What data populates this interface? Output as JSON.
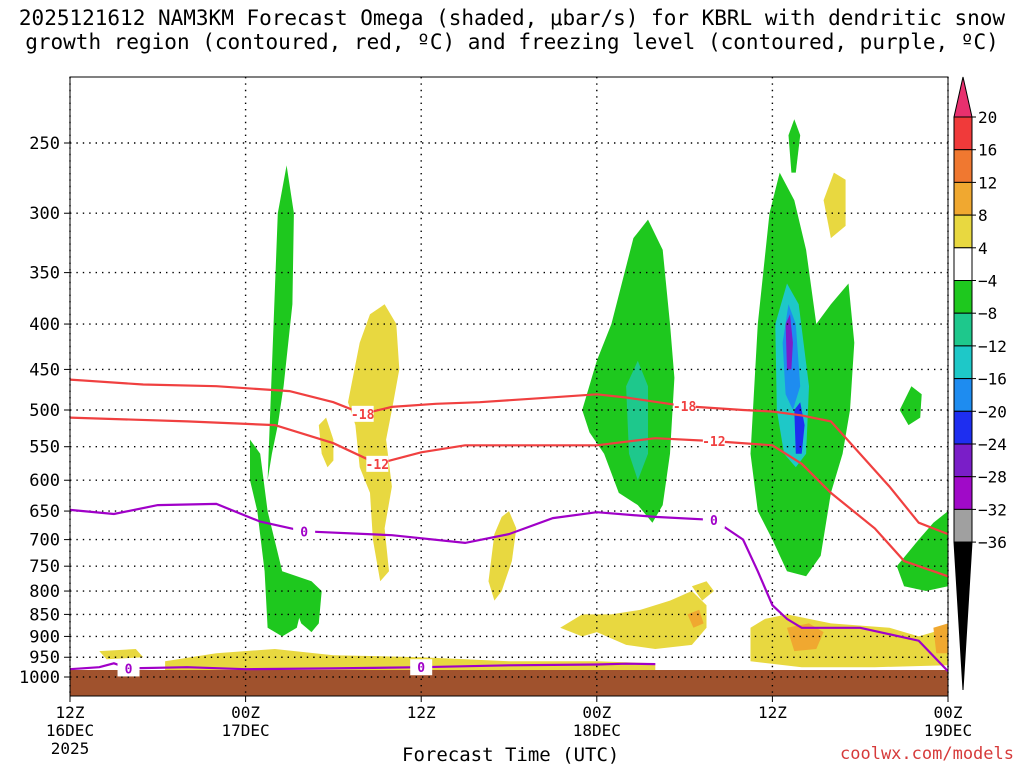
{
  "title_line1": "2025121612 NAM3KM Forecast Omega (shaded, μbar/s) for KBRL with dendritic snow",
  "title_line2": "growth region (contoured, red, ºC) and freezing level (contoured, purple, ºC)",
  "credit": "coolwx.com/models",
  "chart_data": {
    "type": "heatmap",
    "xlabel": "Forecast Time (UTC)",
    "ylabel": "",
    "x_ticks": [
      {
        "hour": 0,
        "label": [
          "12Z",
          "16DEC",
          "2025"
        ]
      },
      {
        "hour": 12,
        "label": [
          "00Z",
          "17DEC"
        ]
      },
      {
        "hour": 24,
        "label": [
          "12Z"
        ]
      },
      {
        "hour": 36,
        "label": [
          "00Z",
          "18DEC"
        ]
      },
      {
        "hour": 48,
        "label": [
          "12Z"
        ]
      },
      {
        "hour": 60,
        "label": [
          "00Z",
          "19DEC"
        ]
      }
    ],
    "xlim": [
      0,
      60
    ],
    "y_ticks": [
      250,
      300,
      350,
      400,
      450,
      500,
      550,
      600,
      650,
      700,
      750,
      800,
      850,
      900,
      950,
      1000
    ],
    "ylim": [
      1000,
      200
    ],
    "y_scale": "log",
    "colorbar": {
      "labels": [
        "20",
        "16",
        "12",
        "8",
        "4",
        "−4",
        "−8",
        "−12",
        "−16",
        "−20",
        "−24",
        "−28",
        "−32",
        "−36"
      ],
      "colors": [
        "#e8306e",
        "#f03a3a",
        "#f07830",
        "#f0a830",
        "#e8d840",
        "#ffffff",
        "#1ec81e",
        "#1ec88c",
        "#1ec8c8",
        "#1e8cf0",
        "#1e2ef0",
        "#7a1ec8",
        "#a00ac8",
        "#a0a0a0",
        "#000000"
      ]
    },
    "ground_color": "#a0522d",
    "isotherms": [
      {
        "label": "-18",
        "color": "#f04040",
        "points": [
          [
            0,
            462
          ],
          [
            5,
            468
          ],
          [
            10,
            470
          ],
          [
            15,
            476
          ],
          [
            18,
            490
          ],
          [
            20,
            505
          ],
          [
            22,
            496
          ],
          [
            25,
            492
          ],
          [
            28,
            490
          ],
          [
            32,
            485
          ],
          [
            36,
            480
          ],
          [
            38,
            484
          ],
          [
            42,
            495
          ],
          [
            46,
            500
          ],
          [
            48,
            502
          ],
          [
            50,
            507
          ],
          [
            52,
            515
          ],
          [
            56,
            610
          ],
          [
            58,
            670
          ],
          [
            60,
            690
          ]
        ]
      },
      {
        "label": "-12",
        "color": "#f04040",
        "points": [
          [
            0,
            510
          ],
          [
            8,
            515
          ],
          [
            14,
            520
          ],
          [
            18,
            545
          ],
          [
            21,
            575
          ],
          [
            24,
            558
          ],
          [
            27,
            548
          ],
          [
            32,
            548
          ],
          [
            36,
            548
          ],
          [
            40,
            538
          ],
          [
            44,
            542
          ],
          [
            48,
            548
          ],
          [
            50,
            575
          ],
          [
            52,
            620
          ],
          [
            55,
            680
          ],
          [
            57,
            740
          ],
          [
            60,
            770
          ]
        ]
      },
      {
        "label": "0",
        "color": "#a000c8",
        "points": [
          [
            0,
            648
          ],
          [
            3,
            655
          ],
          [
            6,
            640
          ],
          [
            10,
            638
          ],
          [
            13,
            668
          ],
          [
            16,
            685
          ],
          [
            22,
            692
          ],
          [
            27,
            706
          ],
          [
            30,
            690
          ],
          [
            33,
            662
          ],
          [
            36,
            652
          ],
          [
            40,
            660
          ],
          [
            44,
            665
          ],
          [
            46,
            700
          ],
          [
            47,
            760
          ],
          [
            48,
            830
          ],
          [
            49,
            860
          ],
          [
            50,
            880
          ],
          [
            54,
            880
          ],
          [
            58,
            910
          ],
          [
            60,
            985
          ]
        ]
      },
      {
        "label": "0",
        "color": "#a000c8",
        "points": [
          [
            0,
            980
          ],
          [
            2,
            975
          ],
          [
            3,
            965
          ],
          [
            4,
            978
          ],
          [
            8,
            975
          ],
          [
            12,
            980
          ],
          [
            18,
            978
          ],
          [
            24,
            975
          ],
          [
            30,
            970
          ],
          [
            36,
            968
          ],
          [
            38,
            966
          ],
          [
            40,
            967
          ]
        ]
      }
    ],
    "shaded_regions": [
      {
        "color": "#1ec81e",
        "poly": [
          [
            12.3,
            540
          ],
          [
            13,
            560
          ],
          [
            13.5,
            650
          ],
          [
            14.5,
            760
          ],
          [
            15.5,
            780
          ],
          [
            15.8,
            840
          ],
          [
            15.5,
            880
          ],
          [
            14.5,
            900
          ],
          [
            13.5,
            880
          ],
          [
            13.3,
            760
          ],
          [
            12.8,
            650
          ],
          [
            12.3,
            600
          ]
        ]
      },
      {
        "color": "#1ec81e",
        "poly": [
          [
            13.5,
            600
          ],
          [
            14.2,
            300
          ],
          [
            14.8,
            265
          ],
          [
            15.3,
            300
          ],
          [
            15.2,
            380
          ],
          [
            14.6,
            470
          ],
          [
            14.2,
            520
          ],
          [
            13.8,
            560
          ]
        ]
      },
      {
        "color": "#1ec81e",
        "poly": [
          [
            14.5,
            760
          ],
          [
            16.5,
            780
          ],
          [
            17.2,
            800
          ],
          [
            17,
            870
          ],
          [
            16.5,
            890
          ],
          [
            15.8,
            870
          ]
        ]
      },
      {
        "color": "#1ec81e",
        "poly": [
          [
            35,
            500
          ],
          [
            36,
            440
          ],
          [
            37,
            400
          ],
          [
            38.5,
            320
          ],
          [
            39.5,
            305
          ],
          [
            40.5,
            330
          ],
          [
            41,
            400
          ],
          [
            41.3,
            460
          ],
          [
            41,
            560
          ],
          [
            40.5,
            640
          ],
          [
            39.8,
            670
          ],
          [
            38.8,
            640
          ],
          [
            37.5,
            620
          ],
          [
            36.5,
            560
          ],
          [
            35.5,
            530
          ]
        ]
      },
      {
        "color": "#1ec81e",
        "poly": [
          [
            46.5,
            560
          ],
          [
            47,
            400
          ],
          [
            47.8,
            300
          ],
          [
            48.5,
            270
          ],
          [
            49.5,
            290
          ],
          [
            50.3,
            330
          ],
          [
            51,
            400
          ],
          [
            52,
            380
          ],
          [
            53.2,
            360
          ],
          [
            53.6,
            420
          ],
          [
            53.3,
            500
          ],
          [
            52.8,
            560
          ],
          [
            52,
            620
          ],
          [
            51.3,
            730
          ],
          [
            50.3,
            770
          ],
          [
            49,
            760
          ],
          [
            48,
            700
          ],
          [
            47,
            650
          ]
        ]
      },
      {
        "color": "#1ec81e",
        "poly": [
          [
            56.5,
            750
          ],
          [
            58,
            700
          ],
          [
            59,
            670
          ],
          [
            60,
            650
          ],
          [
            60,
            790
          ],
          [
            58.5,
            800
          ],
          [
            57,
            790
          ]
        ]
      },
      {
        "color": "#1ec81e",
        "poly": [
          [
            49.1,
            245
          ],
          [
            49.5,
            235
          ],
          [
            49.9,
            245
          ],
          [
            49.6,
            270
          ],
          [
            49.3,
            270
          ]
        ]
      },
      {
        "color": "#1ec81e",
        "poly": [
          [
            56.7,
            500
          ],
          [
            57.5,
            470
          ],
          [
            58.2,
            480
          ],
          [
            58.1,
            510
          ],
          [
            57.3,
            520
          ]
        ]
      },
      {
        "color": "#1ec8c8",
        "poly": [
          [
            48.2,
            400
          ],
          [
            49,
            360
          ],
          [
            49.8,
            380
          ],
          [
            50.5,
            470
          ],
          [
            50.3,
            560
          ],
          [
            49.6,
            580
          ],
          [
            48.8,
            560
          ],
          [
            48.3,
            500
          ]
        ]
      },
      {
        "color": "#1ec88c",
        "poly": [
          [
            38,
            470
          ],
          [
            38.8,
            440
          ],
          [
            39.5,
            470
          ],
          [
            39.5,
            560
          ],
          [
            38.8,
            600
          ],
          [
            38.2,
            560
          ]
        ]
      },
      {
        "color": "#1e8cf0",
        "poly": [
          [
            48.7,
            420
          ],
          [
            49.1,
            380
          ],
          [
            49.6,
            400
          ],
          [
            49.9,
            470
          ],
          [
            49.4,
            500
          ],
          [
            48.9,
            480
          ]
        ]
      },
      {
        "color": "#1e2ef0",
        "poly": [
          [
            49.5,
            500
          ],
          [
            49.9,
            490
          ],
          [
            50.2,
            520
          ],
          [
            50,
            560
          ],
          [
            49.6,
            560
          ]
        ]
      },
      {
        "color": "#7a1ec8",
        "poly": [
          [
            48.9,
            400
          ],
          [
            49.2,
            390
          ],
          [
            49.4,
            420
          ],
          [
            49.3,
            450
          ],
          [
            49,
            450
          ]
        ]
      },
      {
        "color": "#e8d840",
        "poly": [
          [
            19,
            490
          ],
          [
            19.8,
            420
          ],
          [
            20.5,
            390
          ],
          [
            21.5,
            380
          ],
          [
            22.3,
            400
          ],
          [
            22.5,
            450
          ],
          [
            22,
            500
          ],
          [
            21.6,
            540
          ],
          [
            22,
            610
          ],
          [
            21.5,
            680
          ],
          [
            21.8,
            760
          ],
          [
            21.2,
            780
          ],
          [
            20.7,
            700
          ],
          [
            20.5,
            620
          ],
          [
            19.8,
            580
          ],
          [
            19.5,
            520
          ]
        ]
      },
      {
        "color": "#e8d840",
        "poly": [
          [
            17,
            520
          ],
          [
            17.5,
            510
          ],
          [
            18,
            540
          ],
          [
            18,
            570
          ],
          [
            17.6,
            580
          ],
          [
            17.2,
            560
          ]
        ]
      },
      {
        "color": "#e8d840",
        "poly": [
          [
            29,
            690
          ],
          [
            29.5,
            660
          ],
          [
            30,
            650
          ],
          [
            30.5,
            680
          ],
          [
            30.2,
            740
          ],
          [
            29.5,
            800
          ],
          [
            29,
            820
          ],
          [
            28.6,
            780
          ]
        ]
      },
      {
        "color": "#e8d840",
        "poly": [
          [
            33.5,
            880
          ],
          [
            35,
            850
          ],
          [
            37,
            850
          ],
          [
            39,
            840
          ],
          [
            41,
            820
          ],
          [
            42.5,
            800
          ],
          [
            43.5,
            830
          ],
          [
            43.5,
            880
          ],
          [
            42.5,
            920
          ],
          [
            40,
            930
          ],
          [
            38,
            920
          ],
          [
            36,
            890
          ],
          [
            35,
            900
          ]
        ]
      },
      {
        "color": "#e8d840",
        "poly": [
          [
            46.5,
            880
          ],
          [
            47.5,
            860
          ],
          [
            49,
            850
          ],
          [
            52,
            870
          ],
          [
            56,
            880
          ],
          [
            58,
            900
          ],
          [
            60,
            880
          ],
          [
            60,
            970
          ],
          [
            55,
            975
          ],
          [
            50,
            975
          ],
          [
            46.5,
            960
          ]
        ]
      },
      {
        "color": "#e8d840",
        "poly": [
          [
            51.5,
            290
          ],
          [
            52.2,
            270
          ],
          [
            53,
            275
          ],
          [
            53,
            310
          ],
          [
            52,
            320
          ]
        ]
      },
      {
        "color": "#e8d840",
        "poly": [
          [
            6.5,
            960
          ],
          [
            10,
            940
          ],
          [
            14,
            930
          ],
          [
            18,
            945
          ],
          [
            24,
            950
          ],
          [
            30,
            960
          ],
          [
            36,
            960
          ],
          [
            40,
            965
          ],
          [
            40,
            985
          ],
          [
            30,
            990
          ],
          [
            20,
            992
          ],
          [
            10,
            990
          ],
          [
            6.5,
            985
          ]
        ]
      },
      {
        "color": "#e8d840",
        "poly": [
          [
            2,
            935
          ],
          [
            4.5,
            930
          ],
          [
            5,
            950
          ],
          [
            2.5,
            955
          ]
        ]
      },
      {
        "color": "#e8d840",
        "poly": [
          [
            42.5,
            790
          ],
          [
            43.5,
            780
          ],
          [
            44,
            800
          ],
          [
            43.2,
            820
          ]
        ]
      },
      {
        "color": "#f0a830",
        "poly": [
          [
            49,
            880
          ],
          [
            50.5,
            870
          ],
          [
            51.5,
            890
          ],
          [
            51,
            930
          ],
          [
            49.5,
            935
          ]
        ]
      },
      {
        "color": "#f0a830",
        "poly": [
          [
            42.2,
            850
          ],
          [
            43,
            840
          ],
          [
            43.3,
            870
          ],
          [
            42.6,
            880
          ]
        ]
      },
      {
        "color": "#f0a830",
        "poly": [
          [
            59,
            880
          ],
          [
            60,
            870
          ],
          [
            60,
            940
          ],
          [
            59.2,
            940
          ]
        ]
      }
    ]
  }
}
